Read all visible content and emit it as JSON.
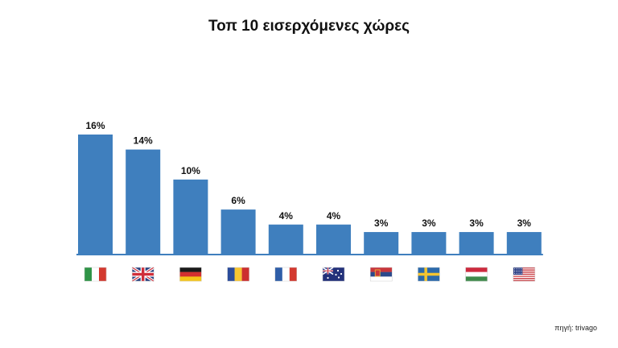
{
  "chart_data": {
    "type": "bar",
    "title": "Τοπ 10 εισερχόμενες χώρες",
    "categories": [
      "Italy",
      "United Kingdom",
      "Germany",
      "Romania",
      "France",
      "Australia",
      "Serbia",
      "Sweden",
      "Hungary",
      "United States"
    ],
    "values": [
      16,
      14,
      10,
      6,
      4,
      4,
      3,
      3,
      3,
      3
    ],
    "value_labels": [
      "16%",
      "14%",
      "10%",
      "6%",
      "4%",
      "4%",
      "3%",
      "3%",
      "3%",
      "3%"
    ],
    "flag_icons": [
      "italy-flag-icon",
      "uk-flag-icon",
      "germany-flag-icon",
      "romania-flag-icon",
      "france-flag-icon",
      "australia-flag-icon",
      "serbia-flag-icon",
      "sweden-flag-icon",
      "hungary-flag-icon",
      "usa-flag-icon"
    ],
    "ylim": [
      0,
      16
    ],
    "grid": false,
    "legend": "none",
    "bar_color": "#3f7fbe",
    "baseline_color": "#3f7fbe"
  },
  "source": "πηγή: trivago"
}
